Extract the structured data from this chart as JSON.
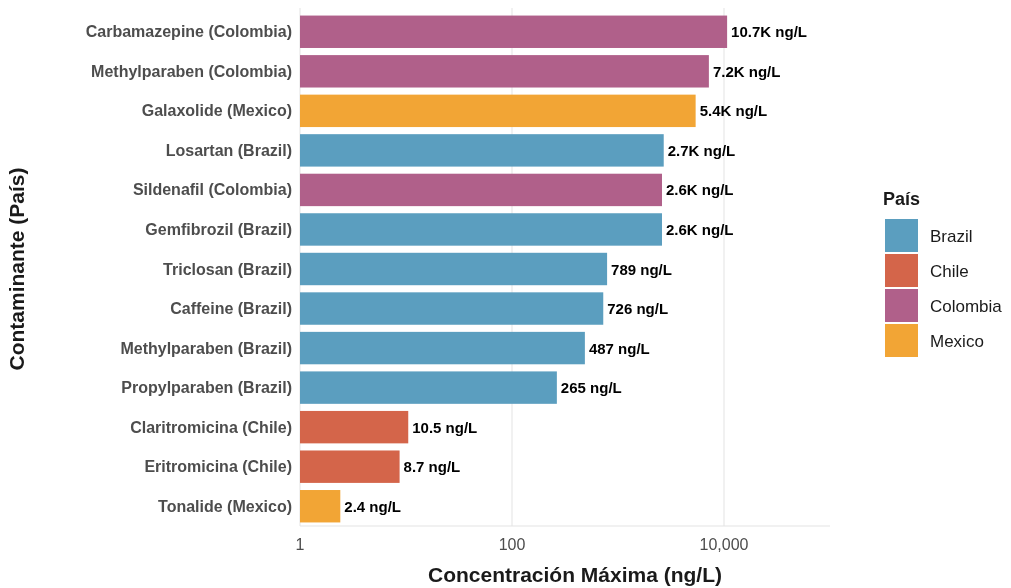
{
  "chart_data": {
    "type": "bar",
    "orientation": "horizontal",
    "xlabel": "Concentración Máxima (ng/L)",
    "ylabel": "Contaminante (País)",
    "legend_title": "País",
    "legend": "right",
    "grid": "x",
    "log": "x",
    "categories": [
      "Carbamazepine (Colombia)",
      "Methylparaben (Colombia)",
      "Galaxolide (Mexico)",
      "Losartan (Brazil)",
      "Sildenafil (Colombia)",
      "Gemfibrozil (Brazil)",
      "Triclosan (Brazil)",
      "Caffeine (Brazil)",
      "Methylparaben (Brazil)",
      "Propylparaben (Brazil)",
      "Claritromicina (Chile)",
      "Eritromicina (Chile)",
      "Tonalide (Mexico)"
    ],
    "xlim": [
      1,
      100000
    ],
    "xticks": [
      1,
      100,
      {
        "value": 10000,
        "label": "10,000"
      }
    ],
    "series": [
      {
        "name": "Brazil",
        "color": "#5b9ebf",
        "values": [
          null,
          null,
          null,
          2700,
          null,
          2600,
          789,
          726,
          487,
          265,
          null,
          null,
          null
        ],
        "value_labels": [
          null,
          null,
          null,
          "2.7K ng/L",
          null,
          "2.6K ng/L",
          "789 ng/L",
          "726 ng/L",
          "487 ng/L",
          "265 ng/L",
          null,
          null,
          null
        ]
      },
      {
        "name": "Chile",
        "color": "#d4654a",
        "values": [
          null,
          null,
          null,
          null,
          null,
          null,
          null,
          null,
          null,
          null,
          10.5,
          8.7,
          null
        ],
        "value_labels": [
          null,
          null,
          null,
          null,
          null,
          null,
          null,
          null,
          null,
          null,
          "10.5 ng/L",
          "8.7 ng/L",
          null
        ]
      },
      {
        "name": "Colombia",
        "color": "#b0608a",
        "values": [
          10700,
          7200,
          null,
          null,
          2600,
          null,
          null,
          null,
          null,
          null,
          null,
          null,
          null
        ],
        "value_labels": [
          "10.7K ng/L",
          "7.2K ng/L",
          null,
          null,
          "2.6K ng/L",
          null,
          null,
          null,
          null,
          null,
          null,
          null,
          null
        ]
      },
      {
        "name": "Mexico",
        "color": "#f2a535",
        "values": [
          null,
          null,
          5400,
          null,
          null,
          null,
          null,
          null,
          null,
          null,
          null,
          null,
          2.4
        ],
        "value_labels": [
          null,
          null,
          "5.4K ng/L",
          null,
          null,
          null,
          null,
          null,
          null,
          null,
          null,
          null,
          "2.4 ng/L"
        ]
      }
    ]
  }
}
